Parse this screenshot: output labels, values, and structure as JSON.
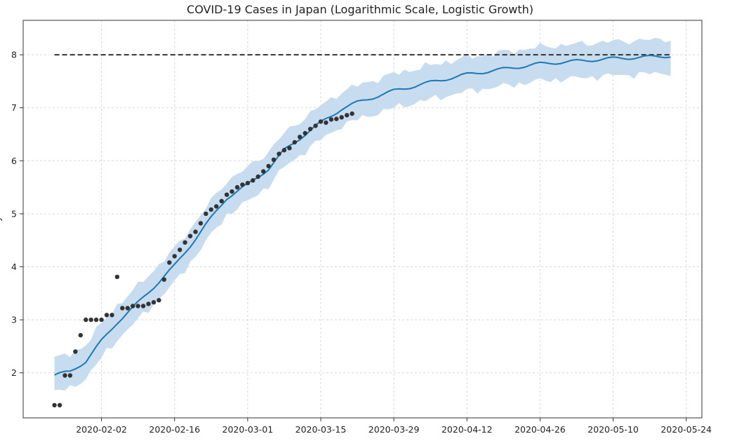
{
  "chart_data": {
    "type": "line",
    "title": "COVID-19 Cases in Japan (Logarithmic Scale, Logistic Growth)",
    "xlabel": "",
    "ylabel": "y",
    "x_type": "date",
    "xlim": [
      "2020-01-18",
      "2020-05-27"
    ],
    "ylim": [
      1.15,
      8.65
    ],
    "grid": true,
    "x_ticks": [
      "2020-02-02",
      "2020-02-16",
      "2020-03-01",
      "2020-03-15",
      "2020-03-29",
      "2020-04-12",
      "2020-04-26",
      "2020-05-10",
      "2020-05-24"
    ],
    "y_ticks": [
      2,
      3,
      4,
      5,
      6,
      7,
      8
    ],
    "cap": {
      "value": 8.0,
      "start": "2020-01-24",
      "end": "2020-05-21",
      "style": "dashed",
      "color": "#333333"
    },
    "forecast": {
      "color": "#1f77b4",
      "band_color": "#c7dcee",
      "uncertainty_halfwidth": 0.32,
      "points": [
        [
          "2020-01-24",
          1.96
        ],
        [
          "2020-01-27",
          2.02
        ],
        [
          "2020-01-30",
          2.22
        ],
        [
          "2020-02-02",
          2.6
        ],
        [
          "2020-02-05",
          2.95
        ],
        [
          "2020-02-09",
          3.32
        ],
        [
          "2020-02-12",
          3.62
        ],
        [
          "2020-02-16",
          4.02
        ],
        [
          "2020-02-19",
          4.4
        ],
        [
          "2020-02-23",
          4.92
        ],
        [
          "2020-02-26",
          5.3
        ],
        [
          "2020-03-01",
          5.55
        ],
        [
          "2020-03-05",
          5.85
        ],
        [
          "2020-03-08",
          6.2
        ],
        [
          "2020-03-12",
          6.5
        ],
        [
          "2020-03-15",
          6.72
        ],
        [
          "2020-03-19",
          6.98
        ],
        [
          "2020-03-22",
          7.1
        ],
        [
          "2020-03-29",
          7.32
        ],
        [
          "2020-04-05",
          7.48
        ],
        [
          "2020-04-12",
          7.63
        ],
        [
          "2020-04-19",
          7.73
        ],
        [
          "2020-04-26",
          7.83
        ],
        [
          "2020-05-03",
          7.88
        ],
        [
          "2020-05-10",
          7.93
        ],
        [
          "2020-05-17",
          7.96
        ],
        [
          "2020-05-21",
          7.98
        ]
      ]
    },
    "observed": {
      "color": "#333333",
      "points": [
        [
          "2020-01-24",
          1.39
        ],
        [
          "2020-01-25",
          1.39
        ],
        [
          "2020-01-26",
          1.95
        ],
        [
          "2020-01-27",
          1.95
        ],
        [
          "2020-01-28",
          2.4
        ],
        [
          "2020-01-29",
          2.71
        ],
        [
          "2020-01-30",
          3.0
        ],
        [
          "2020-01-31",
          3.0
        ],
        [
          "2020-02-01",
          3.0
        ],
        [
          "2020-02-02",
          3.0
        ],
        [
          "2020-02-03",
          3.09
        ],
        [
          "2020-02-04",
          3.09
        ],
        [
          "2020-02-05",
          3.81
        ],
        [
          "2020-02-06",
          3.22
        ],
        [
          "2020-02-07",
          3.22
        ],
        [
          "2020-02-08",
          3.26
        ],
        [
          "2020-02-09",
          3.26
        ],
        [
          "2020-02-10",
          3.26
        ],
        [
          "2020-02-11",
          3.3
        ],
        [
          "2020-02-12",
          3.33
        ],
        [
          "2020-02-13",
          3.37
        ],
        [
          "2020-02-14",
          3.76
        ],
        [
          "2020-02-15",
          4.08
        ],
        [
          "2020-02-16",
          4.2
        ],
        [
          "2020-02-17",
          4.32
        ],
        [
          "2020-02-18",
          4.46
        ],
        [
          "2020-02-19",
          4.58
        ],
        [
          "2020-02-20",
          4.66
        ],
        [
          "2020-02-21",
          4.82
        ],
        [
          "2020-02-22",
          5.0
        ],
        [
          "2020-02-23",
          5.08
        ],
        [
          "2020-02-24",
          5.14
        ],
        [
          "2020-02-25",
          5.24
        ],
        [
          "2020-02-26",
          5.36
        ],
        [
          "2020-02-27",
          5.42
        ],
        [
          "2020-02-28",
          5.5
        ],
        [
          "2020-02-29",
          5.55
        ],
        [
          "2020-03-01",
          5.58
        ],
        [
          "2020-03-02",
          5.63
        ],
        [
          "2020-03-03",
          5.7
        ],
        [
          "2020-03-04",
          5.8
        ],
        [
          "2020-03-05",
          5.9
        ],
        [
          "2020-03-06",
          6.02
        ],
        [
          "2020-03-07",
          6.13
        ],
        [
          "2020-03-08",
          6.2
        ],
        [
          "2020-03-09",
          6.24
        ],
        [
          "2020-03-10",
          6.35
        ],
        [
          "2020-03-11",
          6.45
        ],
        [
          "2020-03-12",
          6.52
        ],
        [
          "2020-03-13",
          6.6
        ],
        [
          "2020-03-14",
          6.66
        ],
        [
          "2020-03-15",
          6.74
        ],
        [
          "2020-03-16",
          6.72
        ],
        [
          "2020-03-17",
          6.78
        ],
        [
          "2020-03-18",
          6.79
        ],
        [
          "2020-03-19",
          6.82
        ],
        [
          "2020-03-20",
          6.86
        ],
        [
          "2020-03-21",
          6.89
        ]
      ]
    }
  }
}
